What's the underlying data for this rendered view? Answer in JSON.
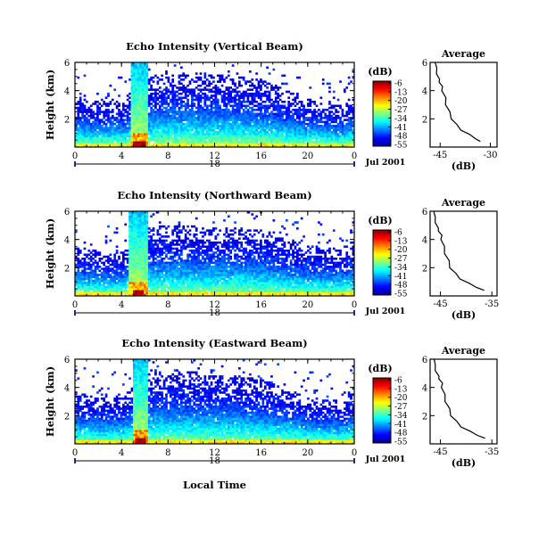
{
  "figure": {
    "xlabel": "Local Time",
    "date_label": "Jul 2001",
    "day_label": "18",
    "colorbar_unit": "(dB)",
    "colorbar_ticks": [
      "-6",
      "-13",
      "-20",
      "-27",
      "-34",
      "-41",
      "-48",
      "-55"
    ],
    "colormap": [
      "#00008f",
      "#0000ff",
      "#0080ff",
      "#00ffff",
      "#80ff80",
      "#ffff00",
      "#ff8000",
      "#ff0000",
      "#800000"
    ]
  },
  "chart_data": [
    {
      "type": "heatmap",
      "title": "Echo Intensity (Vertical Beam)",
      "ylabel": "Height (km)",
      "xlim": [
        0,
        24
      ],
      "ylim": [
        0,
        6
      ],
      "x_ticks": [
        "0",
        "4",
        "8",
        "12",
        "16",
        "20",
        "0"
      ],
      "y_ticks": [
        "2",
        "4",
        "6"
      ],
      "z_range": [
        -55,
        -6
      ],
      "features": {
        "boundary_layer_top_km": [
          [
            0,
            3.6
          ],
          [
            2,
            3.3
          ],
          [
            4,
            3.2
          ],
          [
            6,
            4.9
          ],
          [
            8,
            5.3
          ],
          [
            12,
            5.2
          ],
          [
            16,
            4.8
          ],
          [
            20,
            3.4
          ],
          [
            23,
            3.0
          ],
          [
            24,
            3.8
          ]
        ],
        "convective_column_hours": [
          4.8,
          6.3
        ],
        "max_intensity_db": -6
      }
    },
    {
      "type": "line",
      "title": "Average",
      "xlabel": "(dB)",
      "x_ticks": [
        "-45",
        "-30"
      ],
      "y_ticks": [
        "2",
        "4",
        "6"
      ],
      "xlim": [
        -48,
        -28
      ],
      "ylim": [
        0,
        6
      ],
      "x": [
        -46.5,
        -46.0,
        -45.8,
        -45.5,
        -45.0,
        -44.6,
        -44.2,
        -43.6,
        -43.1,
        -42.4,
        -41.4,
        -40.3,
        -38.5,
        -36.5,
        -34.5,
        -33.0
      ],
      "y": [
        6.0,
        5.6,
        5.2,
        4.8,
        4.6,
        4.3,
        4.0,
        3.5,
        3.0,
        2.5,
        2.0,
        1.6,
        1.2,
        0.9,
        0.6,
        0.4
      ]
    },
    {
      "type": "heatmap",
      "title": "Echo Intensity (Northward Beam)",
      "ylabel": "Height (km)",
      "xlim": [
        0,
        24
      ],
      "ylim": [
        0,
        6
      ],
      "x_ticks": [
        "0",
        "4",
        "8",
        "12",
        "16",
        "20",
        "0"
      ],
      "y_ticks": [
        "2",
        "4",
        "6"
      ],
      "z_range": [
        -55,
        -6
      ],
      "features": {
        "boundary_layer_top_km": [
          [
            0,
            3.5
          ],
          [
            2,
            3.2
          ],
          [
            4,
            3.1
          ],
          [
            6,
            4.8
          ],
          [
            8,
            5.0
          ],
          [
            12,
            4.9
          ],
          [
            16,
            4.7
          ],
          [
            20,
            3.6
          ],
          [
            23,
            3.3
          ],
          [
            24,
            4.0
          ]
        ],
        "convective_column_hours": [
          4.7,
          6.2
        ],
        "max_intensity_db": -6
      }
    },
    {
      "type": "line",
      "title": "Average",
      "xlabel": "(dB)",
      "x_ticks": [
        "-45",
        "-35"
      ],
      "y_ticks": [
        "2",
        "4",
        "6"
      ],
      "xlim": [
        -47,
        -34
      ],
      "ylim": [
        0,
        6
      ],
      "x": [
        -46.3,
        -46.0,
        -45.8,
        -45.6,
        -45.2,
        -44.9,
        -44.7,
        -44.4,
        -44.0,
        -43.5,
        -43.0,
        -42.2,
        -41.0,
        -39.6,
        -38.0,
        -36.5
      ],
      "y": [
        6.0,
        5.6,
        5.2,
        4.8,
        4.6,
        4.3,
        4.0,
        3.5,
        3.0,
        2.5,
        2.0,
        1.6,
        1.2,
        0.9,
        0.6,
        0.4
      ]
    },
    {
      "type": "heatmap",
      "title": "Echo Intensity (Eastward Beam)",
      "ylabel": "Height (km)",
      "xlim": [
        0,
        24
      ],
      "ylim": [
        0,
        6
      ],
      "x_ticks": [
        "0",
        "4",
        "8",
        "12",
        "16",
        "20",
        "0"
      ],
      "y_ticks": [
        "2",
        "4",
        "6"
      ],
      "z_range": [
        -55,
        -6
      ],
      "features": {
        "boundary_layer_top_km": [
          [
            0,
            3.7
          ],
          [
            2,
            3.4
          ],
          [
            4,
            3.3
          ],
          [
            6,
            5.0
          ],
          [
            8,
            5.2
          ],
          [
            12,
            5.0
          ],
          [
            16,
            4.6
          ],
          [
            20,
            3.3
          ],
          [
            23,
            3.1
          ],
          [
            24,
            3.9
          ]
        ],
        "convective_column_hours": [
          4.9,
          6.3
        ],
        "max_intensity_db": -6
      }
    },
    {
      "type": "line",
      "title": "Average",
      "xlabel": "(dB)",
      "x_ticks": [
        "-45",
        "-35"
      ],
      "y_ticks": [
        "2",
        "4",
        "6"
      ],
      "xlim": [
        -47,
        -34
      ],
      "ylim": [
        0,
        6
      ],
      "x": [
        -46.2,
        -46.0,
        -45.8,
        -45.5,
        -45.1,
        -44.8,
        -44.6,
        -44.3,
        -43.9,
        -43.4,
        -42.8,
        -42.0,
        -40.8,
        -39.4,
        -37.8,
        -36.3
      ],
      "y": [
        6.0,
        5.6,
        5.2,
        4.8,
        4.6,
        4.3,
        4.0,
        3.5,
        3.0,
        2.5,
        2.0,
        1.6,
        1.2,
        0.9,
        0.6,
        0.4
      ]
    }
  ]
}
